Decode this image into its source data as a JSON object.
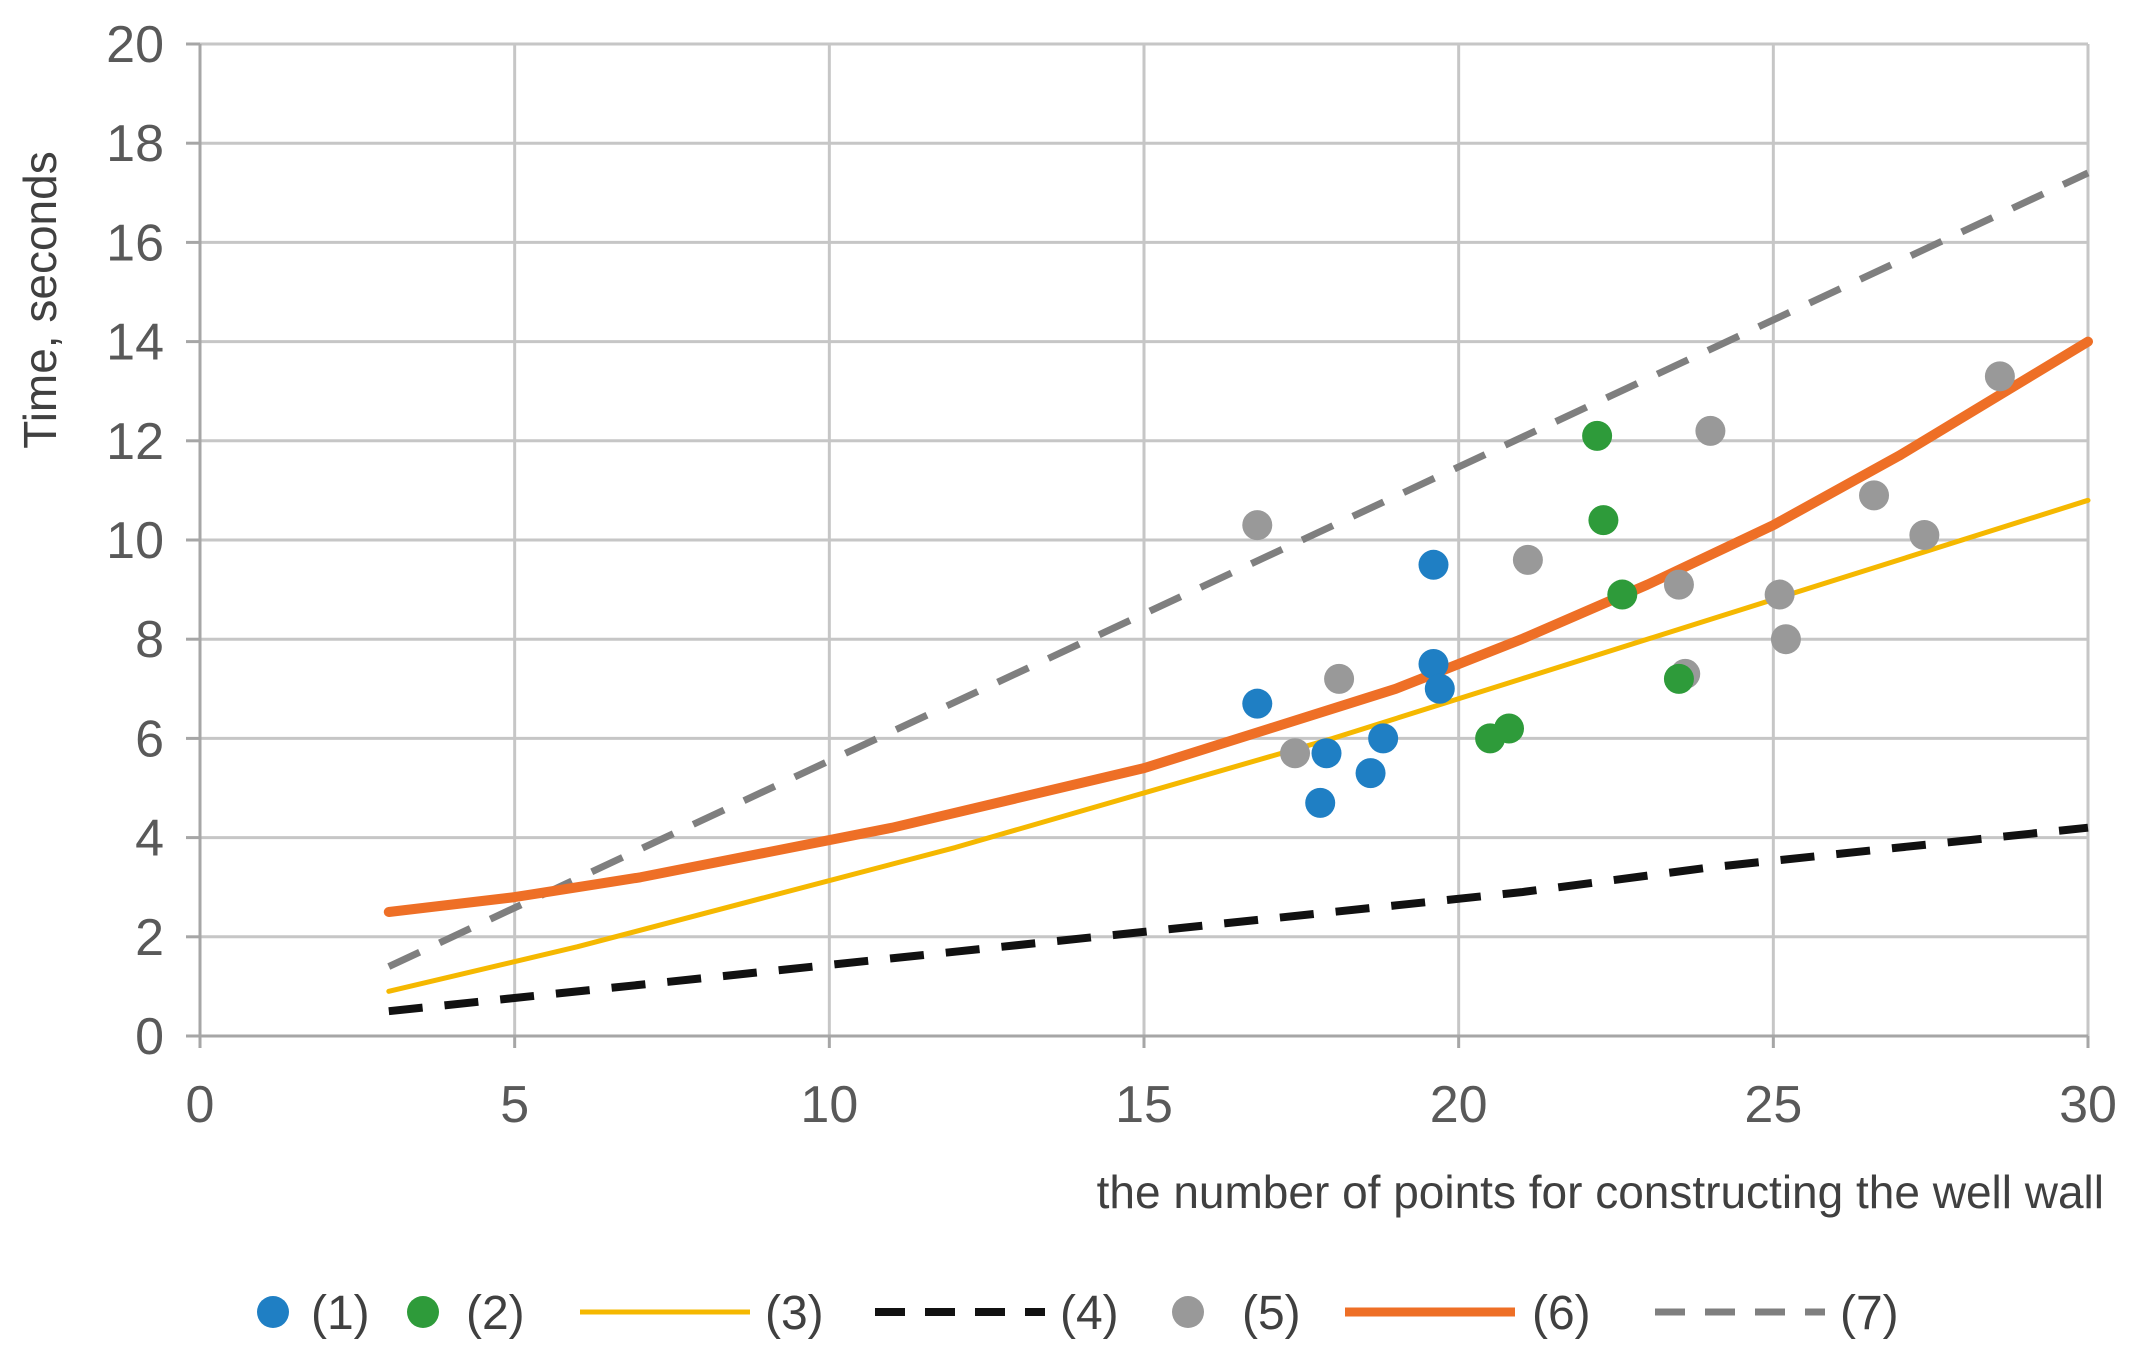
{
  "chart_data": {
    "type": "scatter",
    "title": "",
    "xlabel": "the number of points for constructing the well wall",
    "ylabel": "Time, seconds",
    "xlim": [
      0,
      30
    ],
    "ylim": [
      0,
      20
    ],
    "xticks": [
      0,
      5,
      10,
      15,
      20,
      25,
      30
    ],
    "yticks": [
      0,
      2,
      4,
      6,
      8,
      10,
      12,
      14,
      16,
      18,
      20
    ],
    "grid": true,
    "legend_position": "bottom",
    "series": [
      {
        "name": "(1)",
        "kind": "points",
        "color": "#1f7fc4",
        "points": [
          [
            16.8,
            6.7
          ],
          [
            17.8,
            4.7
          ],
          [
            17.9,
            5.7
          ],
          [
            18.6,
            5.3
          ],
          [
            18.8,
            6.0
          ],
          [
            19.6,
            9.5
          ],
          [
            19.6,
            7.5
          ],
          [
            19.7,
            7.0
          ]
        ]
      },
      {
        "name": "(2)",
        "kind": "points",
        "color": "#2e9b3a",
        "points": [
          [
            22.2,
            12.1
          ],
          [
            22.3,
            10.4
          ],
          [
            22.6,
            8.9
          ],
          [
            23.5,
            7.2
          ],
          [
            20.5,
            6.0
          ],
          [
            20.8,
            6.2
          ]
        ]
      },
      {
        "name": "(3)",
        "kind": "line",
        "color": "#f5b800",
        "dash": "solid",
        "width": 5,
        "x": [
          3,
          6,
          9,
          12,
          15,
          18,
          21,
          24,
          27,
          30
        ],
        "values": [
          0.9,
          1.8,
          2.8,
          3.8,
          4.9,
          6.0,
          7.2,
          8.4,
          9.6,
          10.8
        ]
      },
      {
        "name": "(4)",
        "kind": "line",
        "color": "#111111",
        "dash": "long-dash",
        "width": 8,
        "x": [
          3,
          6,
          9,
          12,
          15,
          18,
          21,
          24,
          27,
          30
        ],
        "values": [
          0.5,
          0.9,
          1.3,
          1.7,
          2.1,
          2.5,
          2.9,
          3.4,
          3.8,
          4.2
        ]
      },
      {
        "name": "(5)",
        "kind": "points",
        "color": "#999999",
        "points": [
          [
            16.8,
            10.3
          ],
          [
            17.4,
            5.7
          ],
          [
            18.1,
            7.2
          ],
          [
            21.1,
            9.6
          ],
          [
            23.5,
            9.1
          ],
          [
            23.6,
            7.3
          ],
          [
            24.0,
            12.2
          ],
          [
            25.1,
            8.9
          ],
          [
            25.2,
            8.0
          ],
          [
            26.6,
            10.9
          ],
          [
            27.4,
            10.1
          ],
          [
            28.6,
            13.3
          ]
        ]
      },
      {
        "name": "(6)",
        "kind": "line",
        "color": "#ee6f26",
        "dash": "solid",
        "width": 10,
        "x": [
          3,
          5,
          7,
          9,
          11,
          13,
          15,
          17,
          19,
          21,
          23,
          25,
          27,
          30
        ],
        "values": [
          2.5,
          2.8,
          3.2,
          3.7,
          4.2,
          4.8,
          5.4,
          6.2,
          7.0,
          8.0,
          9.1,
          10.3,
          11.7,
          14.0
        ]
      },
      {
        "name": "(7)",
        "kind": "line",
        "color": "#7f7f7f",
        "dash": "long-dash",
        "width": 7,
        "x": [
          3,
          30
        ],
        "values": [
          1.4,
          17.4
        ]
      }
    ]
  }
}
